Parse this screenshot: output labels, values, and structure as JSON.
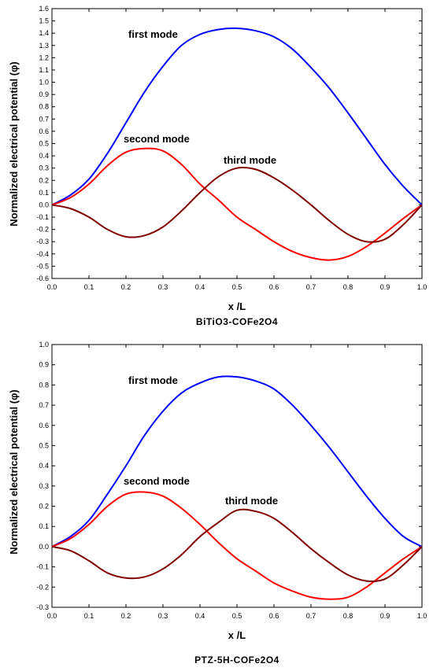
{
  "chart_data": [
    {
      "type": "line",
      "caption": "BiTiO3-COFe2O4",
      "xlabel": "x /L",
      "ylabel": "Normalized electrical potential (φ)",
      "xlim": [
        0.0,
        1.0
      ],
      "ylim": [
        -0.6,
        1.6
      ],
      "xticks": [
        "0.0",
        "0.1",
        "0.2",
        "0.3",
        "0.4",
        "0.5",
        "0.6",
        "0.7",
        "0.8",
        "0.9",
        "1.0"
      ],
      "yticks": [
        "-0.6",
        "-0.5",
        "-0.4",
        "-0.3",
        "-0.2",
        "-0.1",
        "0.0",
        "0.1",
        "0.2",
        "0.3",
        "0.4",
        "0.5",
        "0.6",
        "0.7",
        "0.8",
        "0.9",
        "1.0",
        "1.1",
        "1.2",
        "1.3",
        "1.4",
        "1.5",
        "1.6"
      ],
      "grid": false,
      "legend": "none",
      "x": [
        0.0,
        0.05,
        0.1,
        0.15,
        0.2,
        0.25,
        0.3,
        0.35,
        0.4,
        0.45,
        0.5,
        0.55,
        0.6,
        0.65,
        0.7,
        0.75,
        0.8,
        0.85,
        0.9,
        0.95,
        1.0
      ],
      "series": [
        {
          "label": "first mode",
          "color": "#0000ff",
          "values": [
            0.0,
            0.08,
            0.21,
            0.42,
            0.67,
            0.92,
            1.13,
            1.3,
            1.39,
            1.43,
            1.44,
            1.42,
            1.37,
            1.27,
            1.12,
            0.95,
            0.75,
            0.54,
            0.33,
            0.15,
            0.0
          ]
        },
        {
          "label": "second mode",
          "color": "#ff0000",
          "values": [
            0.0,
            0.06,
            0.17,
            0.32,
            0.43,
            0.46,
            0.44,
            0.33,
            0.17,
            0.04,
            -0.1,
            -0.2,
            -0.3,
            -0.38,
            -0.43,
            -0.45,
            -0.42,
            -0.34,
            -0.23,
            -0.11,
            0.0
          ]
        },
        {
          "label": "third mode",
          "color": "#800000",
          "values": [
            0.0,
            -0.03,
            -0.1,
            -0.2,
            -0.26,
            -0.25,
            -0.18,
            -0.05,
            0.1,
            0.23,
            0.3,
            0.29,
            0.22,
            0.12,
            0.0,
            -0.13,
            -0.24,
            -0.3,
            -0.28,
            -0.16,
            0.0
          ]
        }
      ],
      "annotations": [
        "first mode",
        "second mode",
        "third mode"
      ]
    },
    {
      "type": "line",
      "caption": "PTZ-5H-COFe2O4",
      "xlabel": "x /L",
      "ylabel": "Normalized electrical potential (φ)",
      "xlim": [
        0.0,
        1.0
      ],
      "ylim": [
        -0.3,
        1.0
      ],
      "xticks": [
        "0.0",
        "0.1",
        "0.2",
        "0.3",
        "0.4",
        "0.5",
        "0.6",
        "0.7",
        "0.8",
        "0.9",
        "1.0"
      ],
      "yticks": [
        "-0.3",
        "-0.2",
        "-0.1",
        "0.0",
        "0.1",
        "0.2",
        "0.3",
        "0.4",
        "0.5",
        "0.6",
        "0.7",
        "0.8",
        "0.9",
        "1.0"
      ],
      "grid": false,
      "legend": "none",
      "x": [
        0.0,
        0.05,
        0.1,
        0.15,
        0.2,
        0.25,
        0.3,
        0.35,
        0.4,
        0.45,
        0.5,
        0.55,
        0.6,
        0.65,
        0.7,
        0.75,
        0.8,
        0.85,
        0.9,
        0.95,
        1.0
      ],
      "series": [
        {
          "label": "first mode",
          "color": "#0000ff",
          "values": [
            0.0,
            0.05,
            0.13,
            0.26,
            0.4,
            0.55,
            0.67,
            0.76,
            0.81,
            0.84,
            0.84,
            0.82,
            0.78,
            0.7,
            0.6,
            0.49,
            0.37,
            0.25,
            0.14,
            0.05,
            0.0
          ]
        },
        {
          "label": "second mode",
          "color": "#ff0000",
          "values": [
            0.0,
            0.04,
            0.11,
            0.2,
            0.26,
            0.27,
            0.25,
            0.19,
            0.11,
            0.02,
            -0.06,
            -0.12,
            -0.18,
            -0.22,
            -0.25,
            -0.26,
            -0.25,
            -0.2,
            -0.13,
            -0.06,
            0.0
          ]
        },
        {
          "label": "third mode",
          "color": "#800000",
          "values": [
            0.0,
            -0.02,
            -0.07,
            -0.13,
            -0.155,
            -0.15,
            -0.11,
            -0.04,
            0.05,
            0.12,
            0.18,
            0.175,
            0.14,
            0.07,
            -0.01,
            -0.08,
            -0.14,
            -0.17,
            -0.16,
            -0.09,
            0.0
          ]
        }
      ],
      "annotations": [
        "first mode",
        "second mode",
        "third mode"
      ]
    }
  ]
}
